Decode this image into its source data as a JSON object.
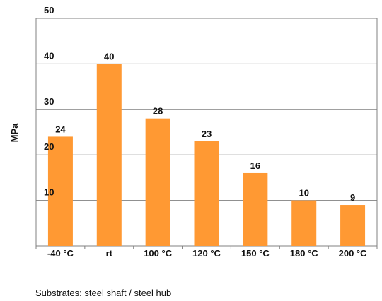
{
  "chart_data": {
    "type": "bar",
    "categories": [
      "-40 °C",
      "rt",
      "100 °C",
      "120 °C",
      "150 °C",
      "180 °C",
      "200 °C"
    ],
    "values": [
      24,
      40,
      28,
      23,
      16,
      10,
      9
    ],
    "data_labels": [
      "24",
      "40",
      "28",
      "23",
      "16",
      "10",
      "9"
    ],
    "title": "",
    "xlabel": "",
    "ylabel": "MPa",
    "ylim": [
      0,
      50
    ],
    "yticks": [
      10,
      20,
      30,
      40,
      50
    ],
    "ytick_labels": [
      "10",
      "20",
      "30",
      "40",
      "50"
    ],
    "grid": true,
    "legend": "none",
    "bar_color": "#FF9933",
    "grid_color": "#808080"
  },
  "footnote": "Substrates: steel shaft / steel hub"
}
